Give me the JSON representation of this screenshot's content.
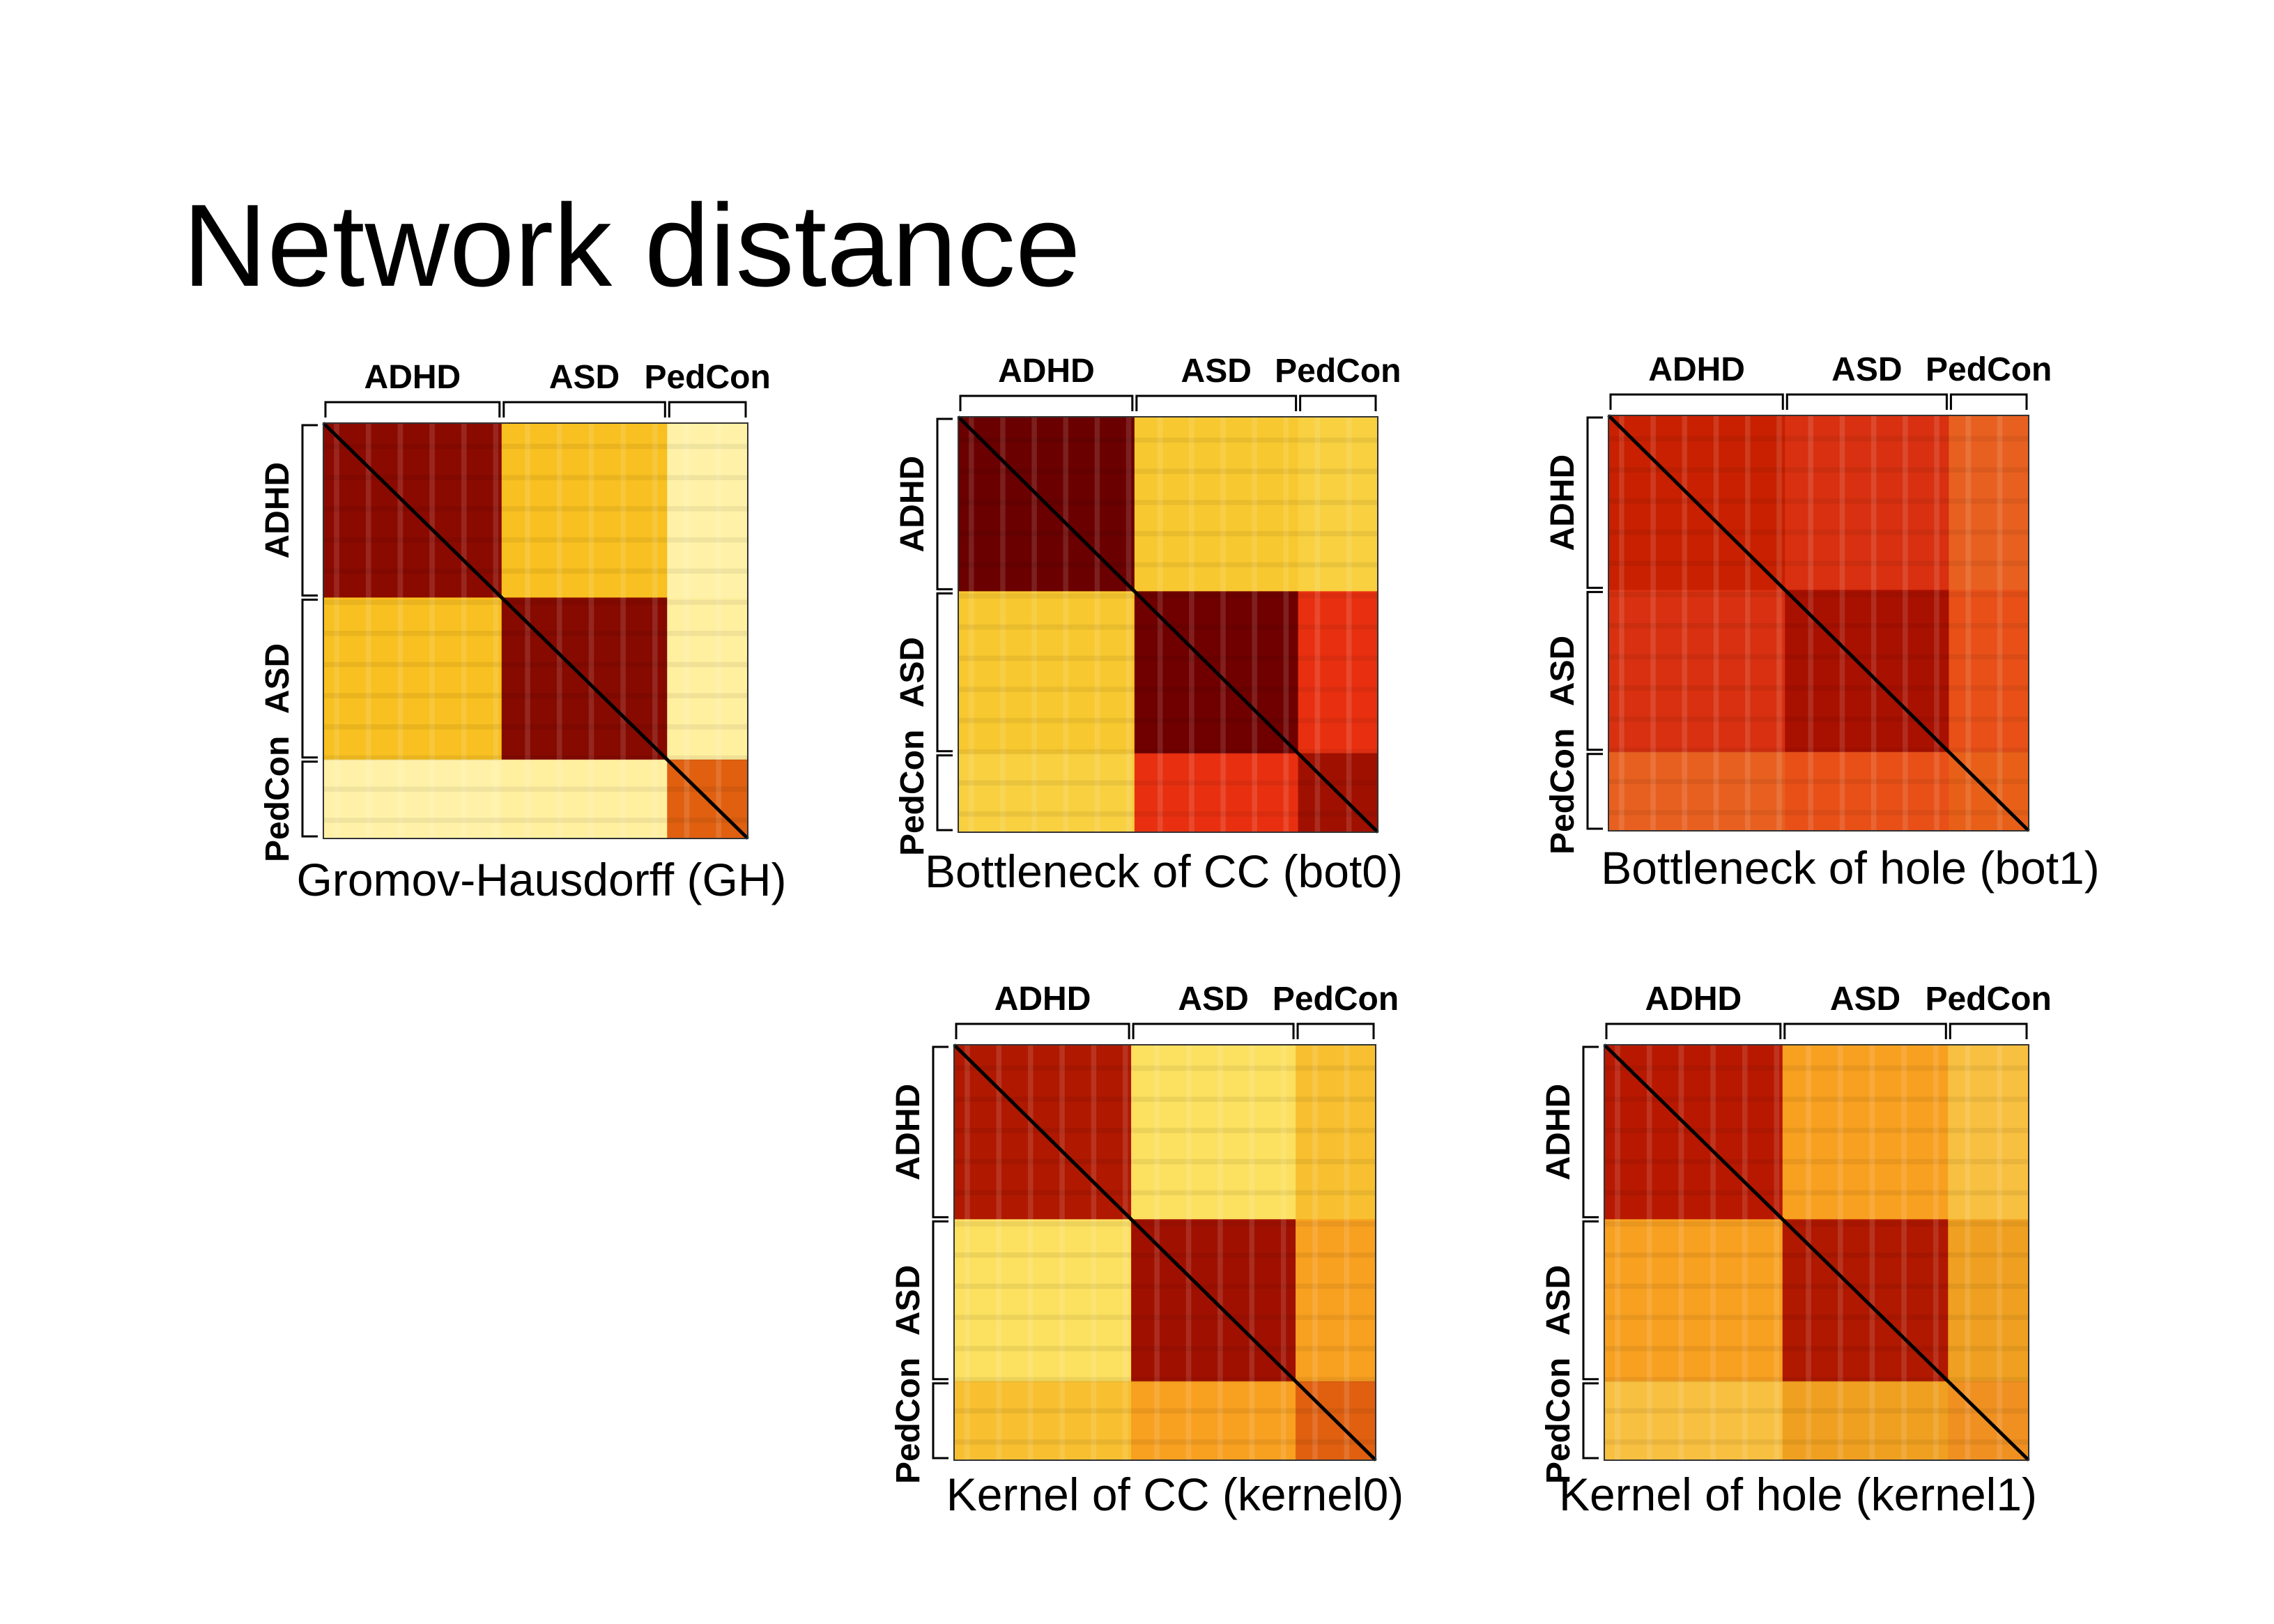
{
  "title": "Network distance",
  "panels": [
    {
      "caption": "Gromov-Hausdorff (GH)",
      "groups": [
        "ADHD",
        "ASD",
        "PedCon"
      ]
    },
    {
      "caption": "Bottleneck of CC (bot0)",
      "groups": [
        "ADHD",
        "ASD",
        "PedCon"
      ]
    },
    {
      "caption": "Bottleneck of hole (bot1)",
      "groups": [
        "ADHD",
        "ASD",
        "PedCon"
      ]
    },
    {
      "caption": "Kernel of CC (kernel0)",
      "groups": [
        "ADHD",
        "ASD",
        "PedCon"
      ]
    },
    {
      "caption": "Kernel of hole (kernel1)",
      "groups": [
        "ADHD",
        "ASD",
        "PedCon"
      ]
    }
  ]
}
